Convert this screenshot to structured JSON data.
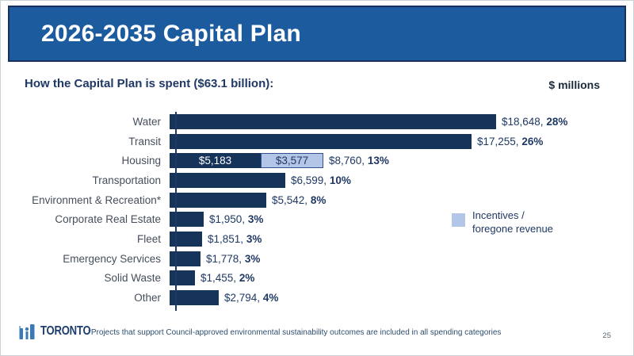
{
  "slide": {
    "title": "2026-2035 Capital Plan",
    "subtitle": "How the Capital Plan is spent ($63.1 billion):",
    "units_label": "$ millions",
    "legend": {
      "label_line1": "Incentives /",
      "label_line2": "foregone revenue"
    },
    "footnote": "*Projects that support Council-approved environmental sustainability outcomes are included in all spending categories",
    "page_number": "25",
    "logo": {
      "wordmark": "TORONTO"
    }
  },
  "colors": {
    "banner_blue": "#1B5B9E",
    "banner_border": "#1A2F5E",
    "bar_dark_navy": "#16335A",
    "bar_light_blue": "#B4C6E7",
    "bar_light_border": "#33518F",
    "text_navy": "#1F3864",
    "category_gray": "#454F5B",
    "logo_blue": "#3D7AB5"
  },
  "chart_data": {
    "type": "bar",
    "orientation": "horizontal",
    "title": "How the Capital Plan is spent ($63.1 billion):",
    "unit": "$ millions",
    "total_label": "$63.1 billion",
    "max_value": 18648,
    "grid": false,
    "legend_position": "right",
    "legend": [
      {
        "label": "Incentives / foregone revenue",
        "color": "#B4C6E7"
      }
    ],
    "categories": [
      "Water",
      "Transit",
      "Housing",
      "Transportation",
      "Environment & Recreation*",
      "Corporate Real Estate",
      "Fleet",
      "Emergency Services",
      "Solid Waste",
      "Other"
    ],
    "rows": [
      {
        "category": "Water",
        "value": 18648,
        "percent": 28,
        "value_label": "$18,648,",
        "pct_label": "28%"
      },
      {
        "category": "Transit",
        "value": 17255,
        "percent": 26,
        "value_label": "$17,255,",
        "pct_label": "26%"
      },
      {
        "category": "Housing",
        "value": 8760,
        "percent": 13,
        "value_label": "$8,760,",
        "pct_label": "13%",
        "segments": [
          {
            "name": "base",
            "value": 5183,
            "label": "$5,183",
            "style": "dark"
          },
          {
            "name": "incentives-foregone-revenue",
            "value": 3577,
            "label": "$3,577",
            "style": "light"
          }
        ]
      },
      {
        "category": "Transportation",
        "value": 6599,
        "percent": 10,
        "value_label": "$6,599,",
        "pct_label": "10%"
      },
      {
        "category": "Environment & Recreation*",
        "value": 5542,
        "percent": 8,
        "value_label": "$5,542,",
        "pct_label": "8%"
      },
      {
        "category": "Corporate Real Estate",
        "value": 1950,
        "percent": 3,
        "value_label": "$1,950,",
        "pct_label": "3%"
      },
      {
        "category": "Fleet",
        "value": 1851,
        "percent": 3,
        "value_label": "$1,851,",
        "pct_label": "3%"
      },
      {
        "category": "Emergency Services",
        "value": 1778,
        "percent": 3,
        "value_label": "$1,778,",
        "pct_label": "3%"
      },
      {
        "category": "Solid Waste",
        "value": 1455,
        "percent": 2,
        "value_label": "$1,455,",
        "pct_label": "2%"
      },
      {
        "category": "Other",
        "value": 2794,
        "percent": 4,
        "value_label": "$2,794,",
        "pct_label": "4%"
      }
    ]
  }
}
